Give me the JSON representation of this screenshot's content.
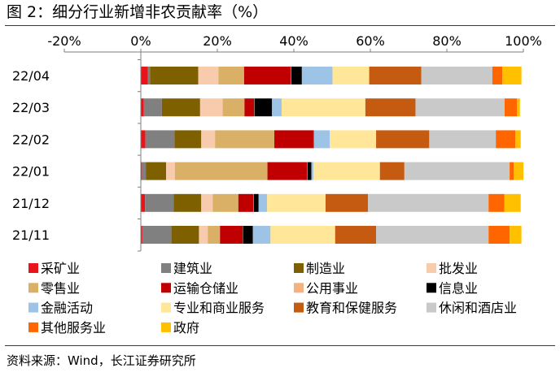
{
  "title": "图 2：细分行业新增非农贡献率（%）",
  "source": "资料来源：Wind，长江证券研究所",
  "chart_data": {
    "type": "bar",
    "orientation": "horizontal",
    "stacked": true,
    "title": "图 2：细分行业新增非农贡献率（%）",
    "xlim": [
      -20,
      100
    ],
    "x_ticks": [
      "-20%",
      "0%",
      "20%",
      "40%",
      "60%",
      "80%",
      "100%"
    ],
    "x_tick_values": [
      -20,
      0,
      20,
      40,
      60,
      80,
      100
    ],
    "x_axis_position": "top",
    "grid": false,
    "legend_position": "bottom",
    "categories": [
      "22/04",
      "22/03",
      "22/02",
      "22/01",
      "21/12",
      "21/11"
    ],
    "series": [
      {
        "name": "采矿业",
        "color": "#e8141b",
        "values": [
          1.8,
          0.8,
          1.2,
          0.3,
          1.1,
          0.4
        ]
      },
      {
        "name": "建筑业",
        "color": "#808080",
        "values": [
          0.6,
          4.7,
          7.6,
          1.0,
          7.5,
          7.6
        ]
      },
      {
        "name": "制造业",
        "color": "#7f6000",
        "values": [
          12.6,
          10.0,
          7.0,
          5.3,
          7.2,
          7.2
        ]
      },
      {
        "name": "批发业",
        "color": "#f8cbad",
        "values": [
          5.3,
          5.9,
          3.6,
          2.3,
          3.0,
          2.3
        ]
      },
      {
        "name": "零售业",
        "color": "#dab066",
        "values": [
          6.7,
          5.7,
          15.5,
          24.2,
          6.7,
          3.2
        ]
      },
      {
        "name": "运输仓储业",
        "color": "#c00000",
        "values": [
          12.2,
          2.5,
          10.2,
          10.4,
          3.9,
          5.9
        ]
      },
      {
        "name": "公用事业",
        "color": "#f4b183",
        "values": [
          0.1,
          0.1,
          0.1,
          0.1,
          0.1,
          0.1
        ]
      },
      {
        "name": "信息业",
        "color": "#000000",
        "values": [
          2.8,
          4.6,
          0.1,
          1.0,
          1.3,
          2.6
        ]
      },
      {
        "name": "金融活动",
        "color": "#9dc3e6",
        "values": [
          8.0,
          2.5,
          4.1,
          0.5,
          2.2,
          4.6
        ]
      },
      {
        "name": "专业和商业服务",
        "color": "#ffe699",
        "values": [
          9.6,
          21.9,
          12.1,
          17.4,
          15.3,
          16.9
        ]
      },
      {
        "name": "教育和保健服务",
        "color": "#c55a11",
        "values": [
          13.6,
          13.1,
          13.9,
          6.4,
          11.1,
          10.7
        ]
      },
      {
        "name": "休闲和酒店业",
        "color": "#c9c9c9",
        "values": [
          18.6,
          23.3,
          17.4,
          27.5,
          31.5,
          29.4
        ]
      },
      {
        "name": "其他服务业",
        "color": "#ff6600",
        "values": [
          2.6,
          3.2,
          5.1,
          1.1,
          4.1,
          5.5
        ]
      },
      {
        "name": "政府",
        "color": "#ffc000",
        "values": [
          5.0,
          0.8,
          1.4,
          2.5,
          4.3,
          3.1
        ]
      }
    ]
  }
}
